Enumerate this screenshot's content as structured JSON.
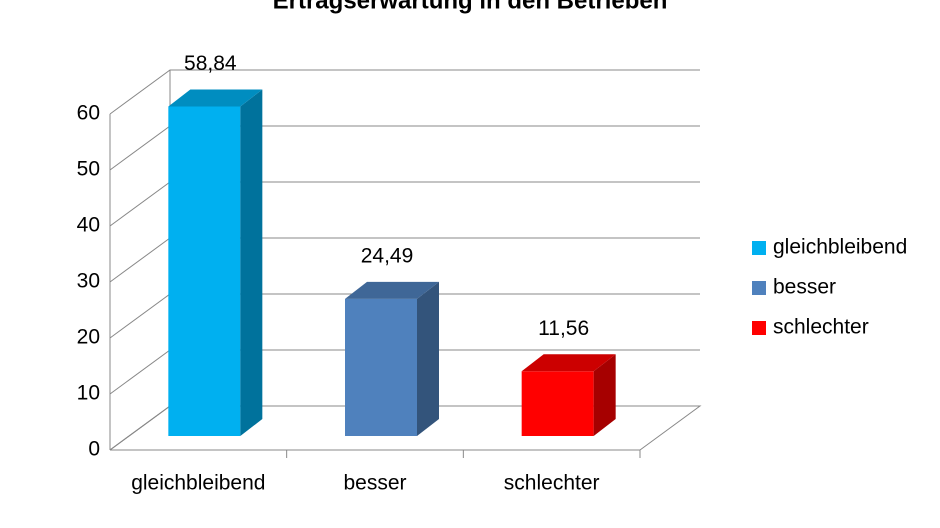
{
  "chart_data": {
    "type": "bar3d",
    "title": "Ertragserwartung in den Betrieben",
    "categories": [
      "gleichbleibend",
      "besser",
      "schlechter"
    ],
    "values": [
      58.84,
      24.49,
      11.56
    ],
    "value_labels": [
      "58,84",
      "24,49",
      "11,56"
    ],
    "colors": [
      "#00b0f0",
      "#4f81bd",
      "#ff0000"
    ],
    "ylim": [
      0,
      60
    ],
    "yticks": [
      0,
      10,
      20,
      30,
      40,
      50,
      60
    ],
    "grid": true,
    "legend": "right"
  }
}
